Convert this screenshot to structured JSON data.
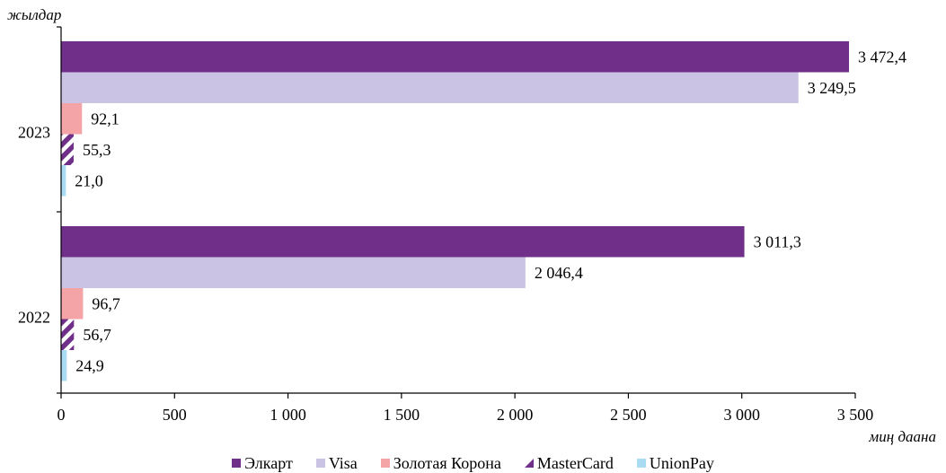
{
  "chart_data": {
    "type": "bar",
    "orientation": "horizontal",
    "title": "",
    "ylabel": "жылдар",
    "xlabel": "миң даана",
    "xlim": [
      0,
      3500
    ],
    "xticks": [
      0,
      500,
      1000,
      1500,
      2000,
      2500,
      3000,
      3500
    ],
    "xtick_labels": [
      "0",
      "500",
      "1 000",
      "1 500",
      "2 000",
      "2 500",
      "3 000",
      "3 500"
    ],
    "categories": [
      "2023",
      "2022"
    ],
    "grid": false,
    "legend_position": "bottom",
    "series": [
      {
        "name": "Элкарт",
        "color": "#70308a",
        "pattern": "solid",
        "values": [
          3472.4,
          3011.3
        ],
        "labels": [
          "3 472,4",
          "3 011,3"
        ]
      },
      {
        "name": "Visa",
        "color": "#cbc3e3",
        "pattern": "solid",
        "values": [
          3249.5,
          2046.4
        ],
        "labels": [
          "3 249,5",
          "2 046,4"
        ]
      },
      {
        "name": "Золотая Корона",
        "color": "#f4a3a6",
        "pattern": "solid",
        "values": [
          92.1,
          96.7
        ],
        "labels": [
          "92,1",
          "96,7"
        ]
      },
      {
        "name": "MasterCard",
        "color": "#70308a",
        "pattern": "diagonal-stripes",
        "values": [
          55.3,
          56.7
        ],
        "labels": [
          "55,3",
          "56,7"
        ]
      },
      {
        "name": "UnionPay",
        "color": "#a9dcf2",
        "pattern": "solid",
        "values": [
          21.0,
          24.9
        ],
        "labels": [
          "21,0",
          "24,9"
        ]
      }
    ]
  }
}
